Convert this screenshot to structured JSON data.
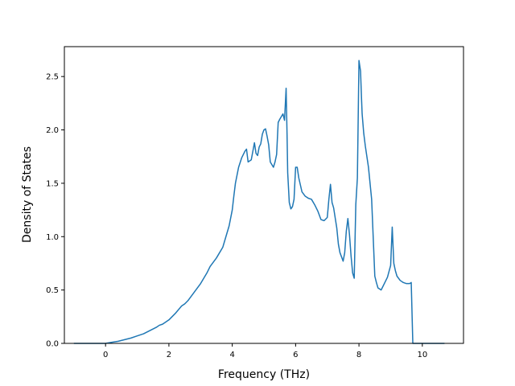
{
  "chart_data": {
    "type": "line",
    "title": "",
    "xlabel": "Frequency (THz)",
    "ylabel": "Density of States",
    "xlim": [
      -1.3,
      11.3
    ],
    "ylim": [
      0.0,
      2.78
    ],
    "xticks": [
      0,
      2,
      4,
      6,
      8,
      10
    ],
    "yticks": [
      0.0,
      0.5,
      1.0,
      1.5,
      2.0,
      2.5
    ],
    "xtick_labels": [
      "0",
      "2",
      "4",
      "6",
      "8",
      "10"
    ],
    "ytick_labels": [
      "0.0",
      "0.5",
      "1.0",
      "1.5",
      "2.0",
      "2.5"
    ],
    "grid": false,
    "line_color": "#1f77b4",
    "series": [
      {
        "x": [
          -1.0,
          -0.5,
          0.0,
          0.2,
          0.4,
          0.6,
          0.8,
          1.0,
          1.2,
          1.4,
          1.6,
          1.7,
          1.8,
          2.0,
          2.2,
          2.4,
          2.5,
          2.6,
          2.8,
          3.0,
          3.1,
          3.2,
          3.3,
          3.5,
          3.7,
          3.8,
          3.9,
          4.0,
          4.05,
          4.1,
          4.2,
          4.3,
          4.4,
          4.45,
          4.5,
          4.6,
          4.65,
          4.7,
          4.75,
          4.8,
          4.85,
          4.9,
          4.95,
          5.0,
          5.05,
          5.1,
          5.15,
          5.2,
          5.3,
          5.35,
          5.4,
          5.45,
          5.5,
          5.6,
          5.65,
          5.7,
          5.73,
          5.75,
          5.8,
          5.85,
          5.9,
          5.95,
          6.0,
          6.05,
          6.1,
          6.2,
          6.3,
          6.4,
          6.5,
          6.6,
          6.7,
          6.8,
          6.9,
          7.0,
          7.05,
          7.1,
          7.15,
          7.2,
          7.3,
          7.35,
          7.4,
          7.5,
          7.55,
          7.6,
          7.65,
          7.7,
          7.75,
          7.8,
          7.85,
          7.9,
          7.95,
          8.0,
          8.05,
          8.08,
          8.1,
          8.15,
          8.2,
          8.3,
          8.4,
          8.5,
          8.55,
          8.6,
          8.7,
          8.8,
          8.9,
          9.0,
          9.05,
          9.1,
          9.15,
          9.2,
          9.3,
          9.4,
          9.5,
          9.6,
          9.65,
          9.7,
          9.8,
          10.0,
          10.3,
          10.7
        ],
        "y": [
          0.0,
          0.0,
          0.0,
          0.01,
          0.02,
          0.035,
          0.05,
          0.07,
          0.09,
          0.12,
          0.15,
          0.17,
          0.18,
          0.22,
          0.28,
          0.35,
          0.37,
          0.4,
          0.48,
          0.56,
          0.61,
          0.66,
          0.72,
          0.8,
          0.9,
          1.0,
          1.1,
          1.25,
          1.38,
          1.5,
          1.65,
          1.74,
          1.8,
          1.82,
          1.7,
          1.72,
          1.8,
          1.88,
          1.78,
          1.76,
          1.84,
          1.87,
          1.96,
          2.0,
          2.01,
          1.94,
          1.86,
          1.7,
          1.65,
          1.7,
          1.77,
          2.07,
          2.1,
          2.15,
          2.09,
          2.39,
          1.95,
          1.6,
          1.32,
          1.26,
          1.28,
          1.35,
          1.65,
          1.65,
          1.55,
          1.42,
          1.38,
          1.36,
          1.35,
          1.3,
          1.24,
          1.16,
          1.15,
          1.18,
          1.35,
          1.49,
          1.32,
          1.27,
          1.08,
          0.93,
          0.85,
          0.77,
          0.85,
          1.05,
          1.17,
          1.02,
          0.82,
          0.66,
          0.61,
          1.3,
          1.55,
          2.65,
          2.55,
          2.3,
          2.15,
          1.97,
          1.85,
          1.65,
          1.35,
          0.63,
          0.57,
          0.52,
          0.5,
          0.56,
          0.62,
          0.73,
          1.09,
          0.75,
          0.68,
          0.63,
          0.59,
          0.57,
          0.56,
          0.56,
          0.57,
          0.0,
          0.0,
          0.0,
          0.0,
          0.0
        ]
      }
    ]
  }
}
